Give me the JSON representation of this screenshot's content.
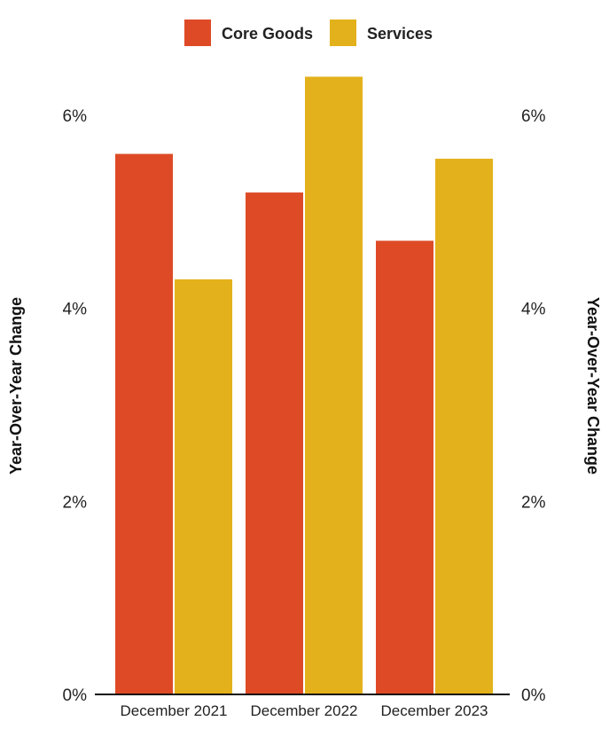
{
  "chart_data": {
    "type": "bar",
    "categories": [
      "December 2021",
      "December 2022",
      "December 2023"
    ],
    "series": [
      {
        "name": "Core Goods",
        "values": [
          5.6,
          5.2,
          4.7
        ],
        "color": "#de4a26"
      },
      {
        "name": "Services",
        "values": [
          4.3,
          6.4,
          5.55
        ],
        "color": "#e3b11b"
      }
    ],
    "ylim": [
      0,
      6.5
    ],
    "yticks": [
      {
        "value": 0,
        "label": "0%"
      },
      {
        "value": 2,
        "label": "2%"
      },
      {
        "value": 4,
        "label": "4%"
      },
      {
        "value": 6,
        "label": "6%"
      }
    ],
    "ylabel_left": "Year-Over-Year Change",
    "ylabel_right": "Year-Over-Year Change",
    "legend_position": "top-center",
    "grid": false
  }
}
